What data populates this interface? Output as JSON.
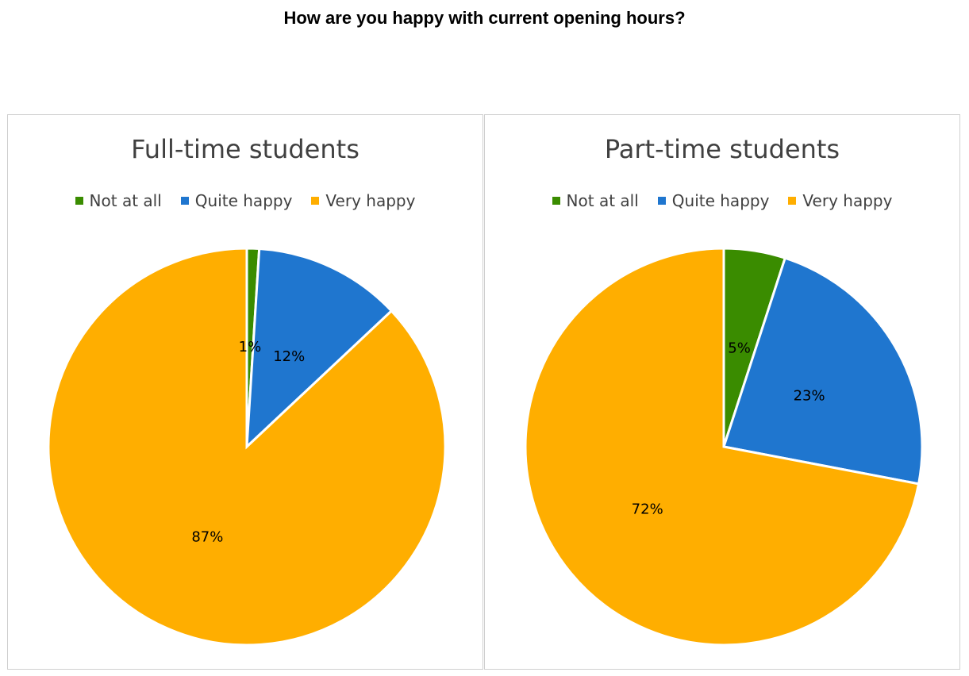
{
  "page": {
    "title": "How are you happy with current opening hours?"
  },
  "colors": {
    "Not at all": "#3a8c00",
    "Quite happy": "#1f76cf",
    "Very happy": "#ffae00"
  },
  "chart_data": [
    {
      "type": "pie",
      "title": "Full-time students",
      "legend": [
        "Not at all",
        "Quite happy",
        "Very happy"
      ],
      "legend_position": "top",
      "categories": [
        "Not at all",
        "Quite happy",
        "Very happy"
      ],
      "values": [
        1,
        12,
        87
      ],
      "labels": [
        "1%",
        "12%",
        "87%"
      ],
      "start_angle_deg": 0,
      "direction": "clockwise"
    },
    {
      "type": "pie",
      "title": "Part-time students",
      "legend": [
        "Not at all",
        "Quite happy",
        "Very happy"
      ],
      "legend_position": "top",
      "categories": [
        "Not at all",
        "Quite happy",
        "Very happy"
      ],
      "values": [
        5,
        23,
        72
      ],
      "labels": [
        "5%",
        "23%",
        "72%"
      ],
      "start_angle_deg": 0,
      "direction": "clockwise"
    }
  ]
}
